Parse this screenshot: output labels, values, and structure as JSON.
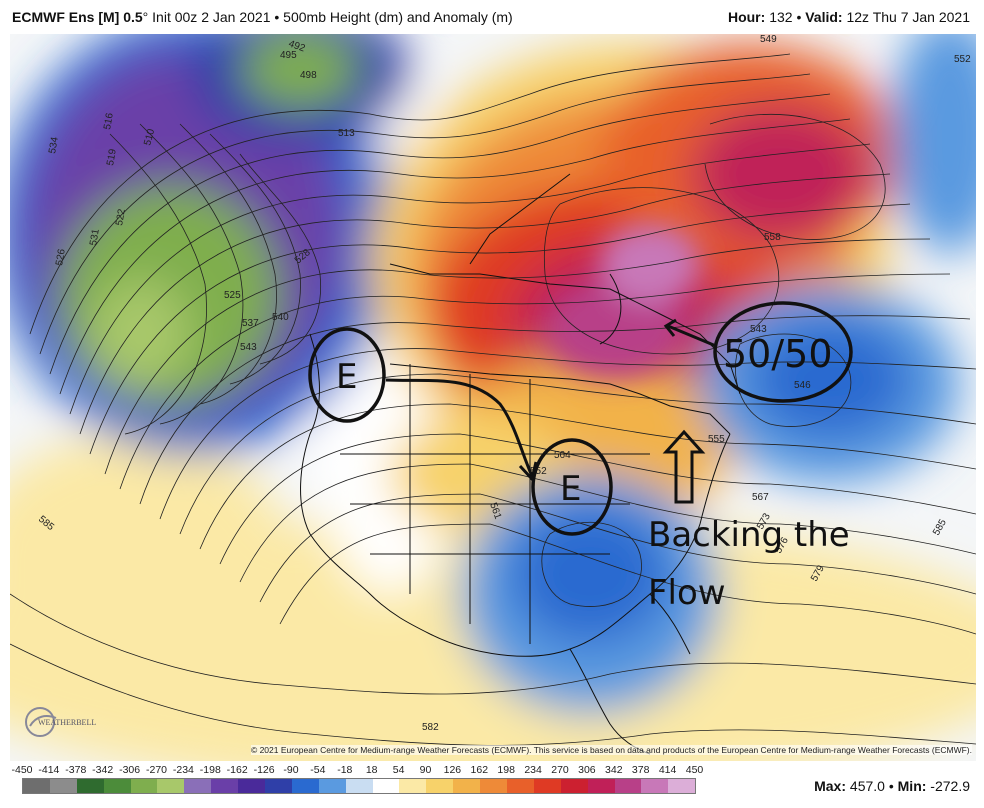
{
  "header": {
    "model": "ECMWF Ens [M] 0.5",
    "degree": "°",
    "init": "Init 00z 2 Jan 2021",
    "product": "500mb Height (dm) and Anomaly (m)",
    "hour_label": "Hour:",
    "hour": "132",
    "valid_label": "Valid:",
    "valid": "12z Thu 7 Jan 2021"
  },
  "annotations": {
    "west_low": "E",
    "central_low": "E",
    "fifty_fifty": "50/50",
    "backing_line1": "Backing the",
    "backing_line2": "Flow"
  },
  "contour_labels": [
    "492",
    "498",
    "495",
    "516",
    "519",
    "510",
    "534",
    "522",
    "531",
    "526",
    "513",
    "528",
    "525",
    "537",
    "540",
    "543",
    "549",
    "552",
    "558",
    "543",
    "546",
    "555",
    "561",
    "564",
    "567",
    "573",
    "576",
    "579",
    "585",
    "585",
    "582",
    "552"
  ],
  "legend": {
    "ticks": [
      "-450",
      "-414",
      "-378",
      "-342",
      "-306",
      "-270",
      "-234",
      "-198",
      "-162",
      "-126",
      "-90",
      "-54",
      "-18",
      "18",
      "54",
      "90",
      "126",
      "162",
      "198",
      "234",
      "270",
      "306",
      "342",
      "378",
      "414",
      "450"
    ],
    "colors": [
      "#6e6e6e",
      "#8c8c8c",
      "#2f6b2f",
      "#4c8c3a",
      "#7fae4e",
      "#a8c86a",
      "#8a6fb8",
      "#6a3fa8",
      "#4a2a9a",
      "#2f3fa8",
      "#2a6ad0",
      "#5a9ae0",
      "#c9ddf2",
      "#ffffff",
      "#fbe9a6",
      "#f7d26a",
      "#f2b24a",
      "#ee8a38",
      "#e8602a",
      "#df3a24",
      "#cc2030",
      "#c02058",
      "#b84088",
      "#c878b8",
      "#dcaed8"
    ]
  },
  "footer": {
    "max_label": "Max:",
    "max": "457.0",
    "min_label": "Min:",
    "min": "-272.9",
    "copyright": "© 2021 European Centre for Medium-range Weather Forecasts (ECMWF). This service is based on data and products of the European Centre for Medium-range Weather Forecasts (ECMWF).",
    "logo_text": "WEATHERBELL"
  }
}
